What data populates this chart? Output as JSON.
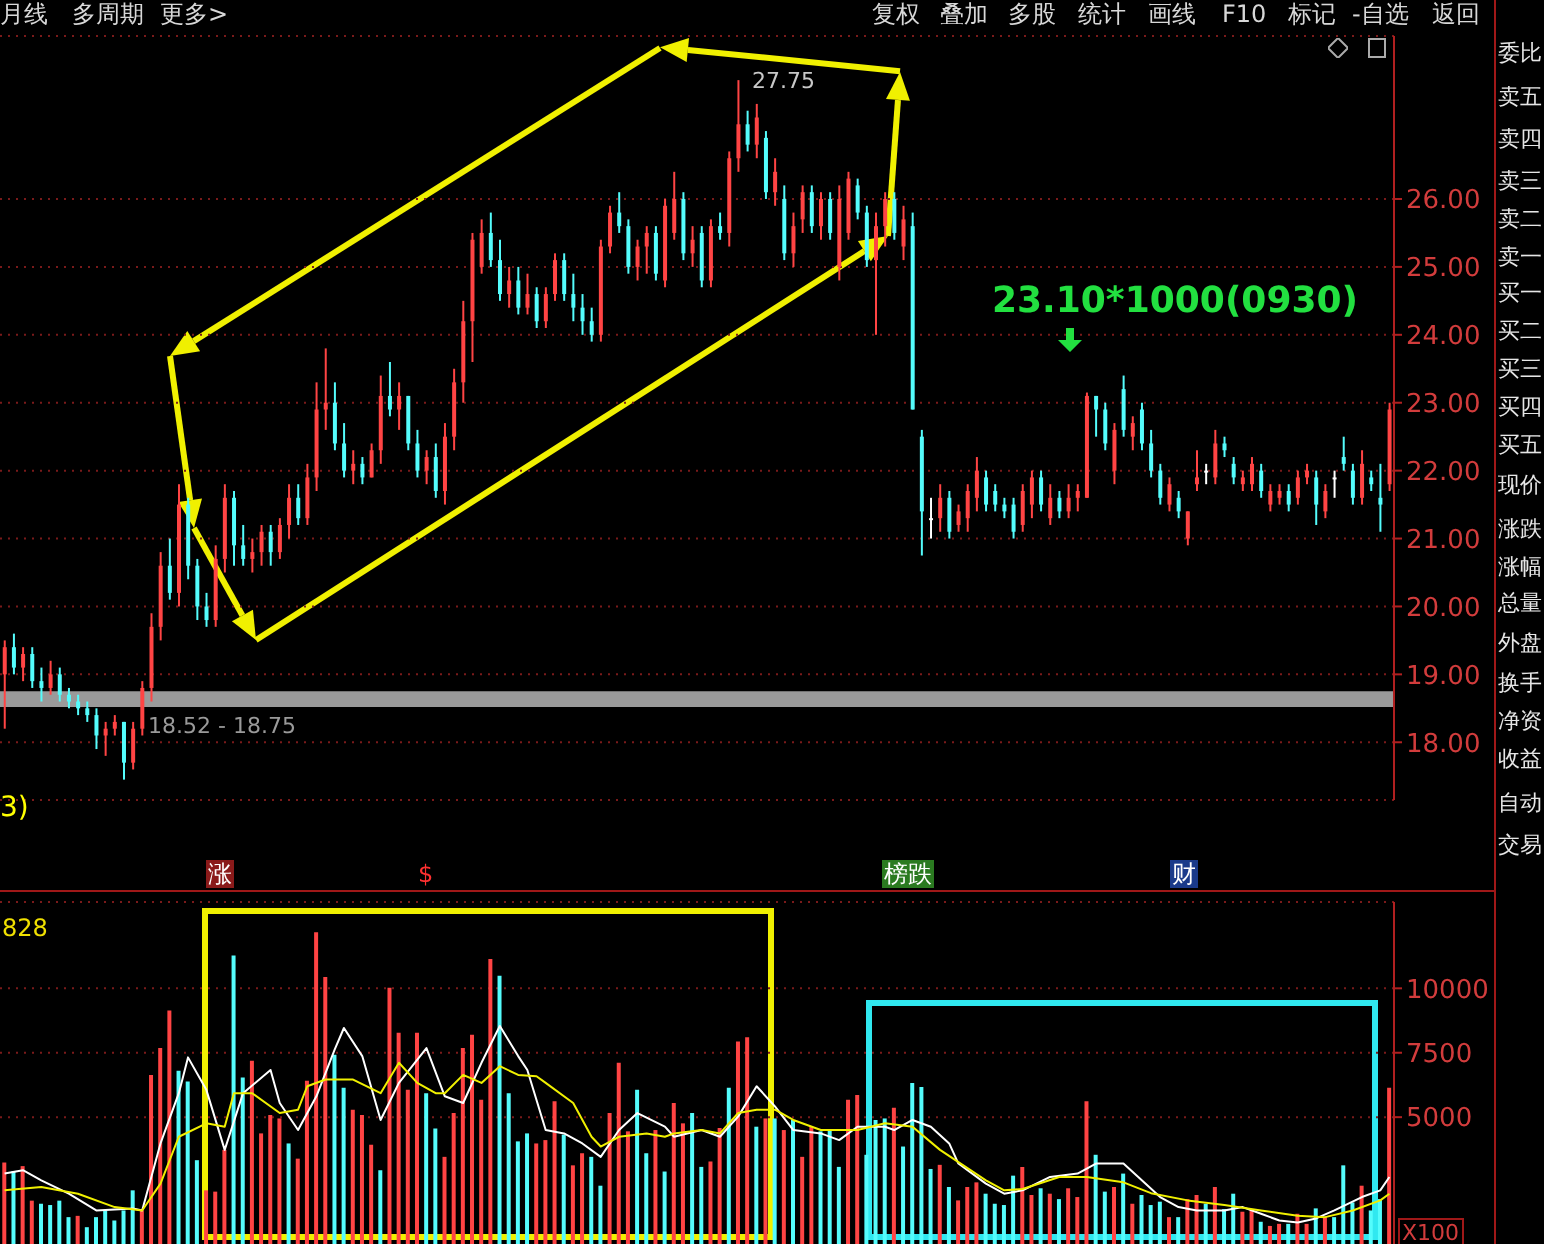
{
  "chart_data": [
    {
      "type": "candlestick",
      "categories": [
        null,
        null,
        null,
        null,
        null,
        null,
        null,
        null,
        null,
        null,
        null,
        null,
        null,
        null,
        null,
        null,
        null,
        null,
        null,
        null,
        null,
        null,
        null,
        null,
        null,
        null,
        null,
        null,
        null,
        null,
        null,
        null,
        null,
        null,
        null,
        null,
        null,
        null,
        null,
        null,
        null,
        null,
        null,
        null,
        null,
        null,
        null,
        null,
        null,
        null,
        null,
        null,
        null,
        null,
        null,
        null,
        null,
        null,
        null,
        null,
        null,
        null,
        null,
        null,
        null,
        null,
        null,
        null,
        null,
        null,
        null,
        null,
        null,
        null,
        null,
        null,
        null,
        null,
        null,
        null,
        null,
        null,
        null,
        null,
        null,
        null,
        null,
        null,
        null,
        null,
        null,
        null,
        null,
        null,
        null,
        null,
        null,
        null,
        null,
        null,
        null,
        null,
        null,
        null,
        null,
        null,
        null,
        null,
        null,
        null,
        null,
        null,
        null,
        null,
        null,
        null,
        null,
        null,
        null,
        null,
        null,
        null,
        null,
        null,
        null,
        null,
        null,
        null,
        null,
        null,
        null,
        null,
        null,
        null,
        null,
        null,
        null,
        null,
        null,
        null,
        null,
        null,
        null,
        null,
        null,
        null,
        null,
        null,
        null,
        null,
        null,
        null
      ],
      "ohlc": [
        [
          19.0,
          19.5,
          18.2,
          19.4
        ],
        [
          19.4,
          19.6,
          19.0,
          19.1
        ],
        [
          19.1,
          19.4,
          18.9,
          19.3
        ],
        [
          19.3,
          19.4,
          18.8,
          18.9
        ],
        [
          18.9,
          19.1,
          18.6,
          18.8
        ],
        [
          18.8,
          19.2,
          18.7,
          19.0
        ],
        [
          19.0,
          19.1,
          18.6,
          18.7
        ],
        [
          18.7,
          18.8,
          18.5,
          18.6
        ],
        [
          18.6,
          18.7,
          18.4,
          18.5
        ],
        [
          18.5,
          18.6,
          18.3,
          18.4
        ],
        [
          18.4,
          18.5,
          17.9,
          18.1
        ],
        [
          18.1,
          18.3,
          17.8,
          18.2
        ],
        [
          18.2,
          18.4,
          18.1,
          18.3
        ],
        [
          18.3,
          18.3,
          17.45,
          17.7
        ],
        [
          17.7,
          18.3,
          17.6,
          18.2
        ],
        [
          18.2,
          18.9,
          18.1,
          18.8
        ],
        [
          18.8,
          19.9,
          18.6,
          19.7
        ],
        [
          19.7,
          20.8,
          19.5,
          20.6
        ],
        [
          20.6,
          21.0,
          20.1,
          20.2
        ],
        [
          20.2,
          21.8,
          20.0,
          21.5
        ],
        [
          21.5,
          21.6,
          20.4,
          20.6
        ],
        [
          20.6,
          20.7,
          19.8,
          20.0
        ],
        [
          20.0,
          20.2,
          19.7,
          19.8
        ],
        [
          19.8,
          20.9,
          19.7,
          20.7
        ],
        [
          20.7,
          21.8,
          20.5,
          21.6
        ],
        [
          21.6,
          21.7,
          20.6,
          20.9
        ],
        [
          20.9,
          21.2,
          20.6,
          20.7
        ],
        [
          20.7,
          21.0,
          20.5,
          20.8
        ],
        [
          20.8,
          21.2,
          20.6,
          21.1
        ],
        [
          21.1,
          21.2,
          20.6,
          20.8
        ],
        [
          20.8,
          21.3,
          20.7,
          21.2
        ],
        [
          21.2,
          21.8,
          21.0,
          21.6
        ],
        [
          21.6,
          21.8,
          21.2,
          21.3
        ],
        [
          21.3,
          22.1,
          21.2,
          21.9
        ],
        [
          21.9,
          23.3,
          21.7,
          22.9
        ],
        [
          22.9,
          23.8,
          22.6,
          23.0
        ],
        [
          23.0,
          23.3,
          22.3,
          22.4
        ],
        [
          22.4,
          22.7,
          21.9,
          22.0
        ],
        [
          22.0,
          22.3,
          21.8,
          22.1
        ],
        [
          22.1,
          22.2,
          21.8,
          21.9
        ],
        [
          21.9,
          22.4,
          21.9,
          22.3
        ],
        [
          22.3,
          23.4,
          22.1,
          23.1
        ],
        [
          23.1,
          23.6,
          22.8,
          22.9
        ],
        [
          22.9,
          23.3,
          22.6,
          23.1
        ],
        [
          23.1,
          23.1,
          22.3,
          22.4
        ],
        [
          22.4,
          22.6,
          21.9,
          22.0
        ],
        [
          22.0,
          22.3,
          21.8,
          22.2
        ],
        [
          22.2,
          22.4,
          21.6,
          21.7
        ],
        [
          21.7,
          22.7,
          21.5,
          22.5
        ],
        [
          22.5,
          23.5,
          22.3,
          23.3
        ],
        [
          23.3,
          24.5,
          23.0,
          24.2
        ],
        [
          24.2,
          25.5,
          23.6,
          25.4
        ],
        [
          25.0,
          25.7,
          24.9,
          25.5
        ],
        [
          25.5,
          25.8,
          25.0,
          25.1
        ],
        [
          25.1,
          25.4,
          24.5,
          24.6
        ],
        [
          24.6,
          25.0,
          24.4,
          24.8
        ],
        [
          24.8,
          25.0,
          24.3,
          24.4
        ],
        [
          24.4,
          24.9,
          24.3,
          24.6
        ],
        [
          24.6,
          24.7,
          24.1,
          24.2
        ],
        [
          24.2,
          24.7,
          24.1,
          24.6
        ],
        [
          24.6,
          25.2,
          24.5,
          25.1
        ],
        [
          25.1,
          25.2,
          24.5,
          24.6
        ],
        [
          24.6,
          24.9,
          24.2,
          24.4
        ],
        [
          24.4,
          24.6,
          24.0,
          24.2
        ],
        [
          24.2,
          24.4,
          23.9,
          24.0
        ],
        [
          24.0,
          25.4,
          23.9,
          25.3
        ],
        [
          25.3,
          25.9,
          25.2,
          25.8
        ],
        [
          25.8,
          26.1,
          25.5,
          25.6
        ],
        [
          25.6,
          25.7,
          24.9,
          25.0
        ],
        [
          25.0,
          25.4,
          24.8,
          25.3
        ],
        [
          25.3,
          25.6,
          24.9,
          25.5
        ],
        [
          25.5,
          25.6,
          24.8,
          24.9
        ],
        [
          24.8,
          26.0,
          24.7,
          25.9
        ],
        [
          25.5,
          26.4,
          25.4,
          26.0
        ],
        [
          26.0,
          26.1,
          25.1,
          25.2
        ],
        [
          25.2,
          25.6,
          25.0,
          25.4
        ],
        [
          25.5,
          25.6,
          24.7,
          24.8
        ],
        [
          24.8,
          25.7,
          24.7,
          25.6
        ],
        [
          25.6,
          25.8,
          25.4,
          25.5
        ],
        [
          25.5,
          26.7,
          25.3,
          26.6
        ],
        [
          26.6,
          27.75,
          26.4,
          27.1
        ],
        [
          27.1,
          27.3,
          26.7,
          26.8
        ],
        [
          26.8,
          27.4,
          26.6,
          27.2
        ],
        [
          26.9,
          27.0,
          26.0,
          26.1
        ],
        [
          26.1,
          26.6,
          25.9,
          26.4
        ],
        [
          26.0,
          26.2,
          25.1,
          25.2
        ],
        [
          25.2,
          25.8,
          25.0,
          25.6
        ],
        [
          25.7,
          26.2,
          25.5,
          26.1
        ],
        [
          26.1,
          26.2,
          25.5,
          25.6
        ],
        [
          25.6,
          26.1,
          25.4,
          26.0
        ],
        [
          26.0,
          26.1,
          25.4,
          25.5
        ],
        [
          25.0,
          26.2,
          24.8,
          26.0
        ],
        [
          25.5,
          26.4,
          25.4,
          26.3
        ],
        [
          26.2,
          26.3,
          25.7,
          25.8
        ],
        [
          25.8,
          25.9,
          25.0,
          25.1
        ],
        [
          25.1,
          25.8,
          24.0,
          25.6
        ],
        [
          25.6,
          26.1,
          25.3,
          26.0
        ],
        [
          26.0,
          26.1,
          25.4,
          25.5
        ],
        [
          25.3,
          25.9,
          25.1,
          25.7
        ],
        [
          25.6,
          25.8,
          22.9,
          22.9
        ],
        [
          22.5,
          22.6,
          20.75,
          21.4
        ],
        [
          21.3,
          21.6,
          21.0,
          21.3
        ],
        [
          21.3,
          21.8,
          21.1,
          21.6
        ],
        [
          21.6,
          21.7,
          21.0,
          21.1
        ],
        [
          21.2,
          21.5,
          21.1,
          21.4
        ],
        [
          21.3,
          21.8,
          21.1,
          21.7
        ],
        [
          21.6,
          22.2,
          21.4,
          22.0
        ],
        [
          21.9,
          22.0,
          21.4,
          21.5
        ],
        [
          21.7,
          21.8,
          21.4,
          21.5
        ],
        [
          21.5,
          21.6,
          21.3,
          21.4
        ],
        [
          21.5,
          21.6,
          21.0,
          21.1
        ],
        [
          21.2,
          21.8,
          21.1,
          21.7
        ],
        [
          21.5,
          22.0,
          21.3,
          21.9
        ],
        [
          21.9,
          22.0,
          21.4,
          21.5
        ],
        [
          21.3,
          21.8,
          21.2,
          21.6
        ],
        [
          21.6,
          21.7,
          21.3,
          21.4
        ],
        [
          21.4,
          21.8,
          21.3,
          21.6
        ],
        [
          21.6,
          21.8,
          21.4,
          21.7
        ],
        [
          21.6,
          23.15,
          21.6,
          23.1
        ],
        [
          23.1,
          23.1,
          22.5,
          22.9
        ],
        [
          22.9,
          23.0,
          22.3,
          22.4
        ],
        [
          22.0,
          22.7,
          21.8,
          22.6
        ],
        [
          23.2,
          23.4,
          22.5,
          22.6
        ],
        [
          22.5,
          22.8,
          22.3,
          22.7
        ],
        [
          22.9,
          23.0,
          22.3,
          22.4
        ],
        [
          22.4,
          22.6,
          21.9,
          22.0
        ],
        [
          22.0,
          22.1,
          21.5,
          21.6
        ],
        [
          21.5,
          21.9,
          21.4,
          21.8
        ],
        [
          21.6,
          21.7,
          21.3,
          21.4
        ],
        [
          21.0,
          21.4,
          20.9,
          21.4
        ],
        [
          21.8,
          22.3,
          21.7,
          21.9
        ],
        [
          22.0,
          22.1,
          21.8,
          22.0
        ],
        [
          21.9,
          22.6,
          21.8,
          22.4
        ],
        [
          22.4,
          22.5,
          22.2,
          22.3
        ],
        [
          22.1,
          22.2,
          21.8,
          21.9
        ],
        [
          21.8,
          22.0,
          21.7,
          21.9
        ],
        [
          21.8,
          22.2,
          21.7,
          22.1
        ],
        [
          22.0,
          22.1,
          21.6,
          21.7
        ],
        [
          21.5,
          21.8,
          21.4,
          21.7
        ],
        [
          21.6,
          21.8,
          21.5,
          21.7
        ],
        [
          21.7,
          21.8,
          21.4,
          21.5
        ],
        [
          21.6,
          22.0,
          21.5,
          21.9
        ],
        [
          21.9,
          22.1,
          21.8,
          22.0
        ],
        [
          21.9,
          22.0,
          21.2,
          21.5
        ],
        [
          21.4,
          21.8,
          21.3,
          21.7
        ],
        [
          21.9,
          22.0,
          21.6,
          21.9
        ],
        [
          22.2,
          22.5,
          22.0,
          22.1
        ],
        [
          22.0,
          22.1,
          21.5,
          21.6
        ],
        [
          21.6,
          22.3,
          21.5,
          22.1
        ],
        [
          21.9,
          22.0,
          21.7,
          21.8
        ],
        [
          21.6,
          22.1,
          21.1,
          21.5
        ],
        [
          21.8,
          23.0,
          21.7,
          22.9
        ]
      ],
      "colors": [
        "#ff4444",
        "#54fcfc",
        "#ff4444",
        "#54fcfc",
        "#54fcfc",
        "#ff4444",
        "#54fcfc",
        "#54fcfc",
        "#54fcfc",
        "#54fcfc",
        "#54fcfc",
        "#ff4444",
        "#ff4444",
        "#54fcfc",
        "#ff4444",
        "#ff4444",
        "#ff4444",
        "#ff4444",
        "#54fcfc",
        "#ff4444",
        "#54fcfc",
        "#54fcfc",
        "#54fcfc",
        "#ff4444",
        "#ff4444",
        "#54fcfc",
        "#54fcfc",
        "#ff4444",
        "#ff4444",
        "#54fcfc",
        "#ff4444",
        "#ff4444",
        "#54fcfc",
        "#ff4444",
        "#ff4444",
        "#ff4444",
        "#54fcfc",
        "#54fcfc",
        "#ff4444",
        "#54fcfc",
        "#ff4444",
        "#ff4444",
        "#54fcfc",
        "#ff4444",
        "#54fcfc",
        "#54fcfc",
        "#ff4444",
        "#54fcfc",
        "#ff4444",
        "#ff4444",
        "#ff4444",
        "#ff4444",
        "#ff4444",
        "#54fcfc",
        "#54fcfc",
        "#ff4444",
        "#54fcfc",
        "#ff4444",
        "#54fcfc",
        "#ff4444",
        "#ff4444",
        "#54fcfc",
        "#54fcfc",
        "#54fcfc",
        "#54fcfc",
        "#ff4444",
        "#ff4444",
        "#54fcfc",
        "#54fcfc",
        "#ff4444",
        "#ff4444",
        "#54fcfc",
        "#ff4444",
        "#ff4444",
        "#54fcfc",
        "#ff4444",
        "#54fcfc",
        "#ff4444",
        "#54fcfc",
        "#ff4444",
        "#ff4444",
        "#54fcfc",
        "#ff4444",
        "#54fcfc",
        "#ff4444",
        "#54fcfc",
        "#ff4444",
        "#ff4444",
        "#54fcfc",
        "#ff4444",
        "#54fcfc",
        "#ff4444",
        "#ff4444",
        "#54fcfc",
        "#54fcfc",
        "#ff4444",
        "#ff4444",
        "#54fcfc",
        "#ff4444",
        "#54fcfc",
        "#54fcfc",
        "#ffffff",
        "#ff4444",
        "#54fcfc",
        "#ff4444",
        "#ff4444",
        "#ff4444",
        "#54fcfc",
        "#54fcfc",
        "#54fcfc",
        "#54fcfc",
        "#ff4444",
        "#ff4444",
        "#54fcfc",
        "#ff4444",
        "#54fcfc",
        "#ff4444",
        "#ff4444",
        "#ff4444",
        "#54fcfc",
        "#54fcfc",
        "#ff4444",
        "#54fcfc",
        "#ff4444",
        "#54fcfc",
        "#54fcfc",
        "#54fcfc",
        "#ff4444",
        "#54fcfc",
        "#ff4444",
        "#ff4444",
        "#ffffff",
        "#ff4444",
        "#54fcfc",
        "#54fcfc",
        "#ff4444",
        "#ff4444",
        "#54fcfc",
        "#ff4444",
        "#ff4444",
        "#54fcfc",
        "#ff4444",
        "#ff4444",
        "#54fcfc",
        "#ff4444",
        "#ffffff",
        "#54fcfc",
        "#54fcfc",
        "#ff4444",
        "#54fcfc",
        "#54fcfc",
        "#ff4444"
      ],
      "ylim": [
        17.15,
        28.4
      ],
      "yticks": [
        {
          "value": 18,
          "label": "18.00"
        },
        {
          "value": 19,
          "label": "19.00"
        },
        {
          "value": 20,
          "label": "20.00"
        },
        {
          "value": 21,
          "label": "21.00"
        },
        {
          "value": 22,
          "label": "22.00"
        },
        {
          "value": 23,
          "label": "23.00"
        },
        {
          "value": 24,
          "label": "24.00"
        },
        {
          "value": 25,
          "label": "25.00"
        },
        {
          "value": 26,
          "label": "26.00"
        }
      ],
      "grid": "y",
      "bands": [
        {
          "axis": "y",
          "from": 18.52,
          "to": 18.75,
          "label": "18.52 - 18.75",
          "color": "#9a9a9a"
        }
      ],
      "annotations": [
        "27.75",
        "23.10*1000(0930)",
        "3)",
        "月线",
        "多周期",
        "更多>",
        "复权",
        "叠加",
        "多股",
        "统计",
        "画线",
        "F10",
        "标记",
        "-自选",
        "返回",
        "委比",
        "卖五",
        "卖四",
        "卖三",
        "卖二",
        "卖一",
        "买一",
        "买二",
        "买三",
        "买四",
        "买五",
        "现价",
        "涨跌",
        "涨幅",
        "总量",
        "外盘",
        "换手",
        "净资",
        "收益",
        "自动",
        "交易"
      ]
    },
    {
      "type": "bar",
      "categories": [
        null,
        null,
        null,
        null,
        null,
        null,
        null,
        null,
        null,
        null,
        null,
        null,
        null,
        null,
        null,
        null,
        null,
        null,
        null,
        null,
        null,
        null,
        null,
        null,
        null,
        null,
        null,
        null,
        null,
        null,
        null,
        null,
        null,
        null,
        null,
        null,
        null,
        null,
        null,
        null,
        null,
        null,
        null,
        null,
        null,
        null,
        null,
        null,
        null,
        null,
        null,
        null,
        null,
        null,
        null,
        null,
        null,
        null,
        null,
        null,
        null,
        null,
        null,
        null,
        null,
        null,
        null,
        null,
        null,
        null,
        null,
        null,
        null,
        null,
        null,
        null,
        null,
        null,
        null,
        null,
        null,
        null,
        null,
        null,
        null,
        null,
        null,
        null,
        null,
        null,
        null,
        null,
        null,
        null,
        null,
        null,
        null,
        null,
        null,
        null,
        null,
        null,
        null,
        null,
        null,
        null,
        null,
        null,
        null,
        null,
        null,
        null,
        null,
        null,
        null,
        null,
        null,
        null,
        null,
        null,
        null,
        null,
        null,
        null,
        null,
        null,
        null,
        null,
        null,
        null,
        null,
        null,
        null,
        null,
        null,
        null,
        null,
        null,
        null,
        null,
        null,
        null,
        null,
        null,
        null,
        null,
        null,
        null,
        null,
        null,
        null,
        null
      ],
      "series": [
        {
          "type": "bar",
          "values": [
            3240,
            2900,
            3100,
            1760,
            1640,
            1590,
            1760,
            1120,
            1170,
            730,
            1120,
            1380,
            990,
            1380,
            2160,
            1380,
            6640,
            7680,
            9140,
            6800,
            6380,
            3330,
            2160,
            2110,
            3730,
            11270,
            6540,
            7190,
            4370,
            5080,
            4950,
            3980,
            3390,
            6410,
            12180,
            10440,
            7420,
            6140,
            5290,
            5080,
            3930,
            2940,
            10020,
            8280,
            6060,
            8280,
            5930,
            4560,
            3460,
            5160,
            7680,
            8200,
            5680,
            11140,
            10490,
            5930,
            4060,
            4370,
            3980,
            4110,
            5620,
            4320,
            3130,
            3600,
            3460,
            2340,
            5160,
            7110,
            4450,
            6060,
            3600,
            4500,
            2890,
            5550,
            4760,
            5160,
            3070,
            3280,
            4580,
            6140,
            7940,
            8100,
            4630,
            4950,
            4950,
            4500,
            4890,
            3460,
            4630,
            4450,
            4500,
            3070,
            5680,
            5860,
            3540,
            4890,
            4950,
            5370,
            3860,
            6330,
            6170,
            2990,
            3150,
            2290,
            1770,
            2290,
            2470,
            2030,
            1640,
            1590,
            2730,
            3070,
            1980,
            2240,
            2030,
            1820,
            2240,
            1900,
            5620,
            3540,
            2110,
            2290,
            2810,
            1640,
            1980,
            1590,
            1720,
            1120,
            1120,
            1820,
            1980,
            1640,
            2290,
            1430,
            2030,
            1330,
            1430,
            940,
            780,
            860,
            860,
            1250,
            860,
            1460,
            1120,
            1120,
            3130,
            1690,
            2340,
            1380,
            1820,
            6140
          ],
          "colors": [
            "#ff4444",
            "#54fcfc",
            "#ff4444",
            "#ff4444",
            "#54fcfc",
            "#54fcfc",
            "#54fcfc",
            "#54fcfc",
            "#ff4444",
            "#54fcfc",
            "#54fcfc",
            "#54fcfc",
            "#54fcfc",
            "#54fcfc",
            "#54fcfc",
            "#ff4444",
            "#ff4444",
            "#ff4444",
            "#ff4444",
            "#54fcfc",
            "#54fcfc",
            "#54fcfc",
            "#ff4444",
            "#ff4444",
            "#ff4444",
            "#54fcfc",
            "#54fcfc",
            "#ff4444",
            "#ff4444",
            "#ff4444",
            "#ff4444",
            "#54fcfc",
            "#ff4444",
            "#ff4444",
            "#ff4444",
            "#ff4444",
            "#54fcfc",
            "#54fcfc",
            "#ff4444",
            "#ff4444",
            "#ff4444",
            "#54fcfc",
            "#ff4444",
            "#ff4444",
            "#ff4444",
            "#ff4444",
            "#54fcfc",
            "#54fcfc",
            "#ff4444",
            "#ff4444",
            "#ff4444",
            "#ff4444",
            "#ff4444",
            "#ff4444",
            "#54fcfc",
            "#54fcfc",
            "#54fcfc",
            "#54fcfc",
            "#ff4444",
            "#ff4444",
            "#ff4444",
            "#54fcfc",
            "#ff4444",
            "#ff4444",
            "#54fcfc",
            "#54fcfc",
            "#ff4444",
            "#ff4444",
            "#ff4444",
            "#54fcfc",
            "#54fcfc",
            "#ff4444",
            "#54fcfc",
            "#ff4444",
            "#ff4444",
            "#54fcfc",
            "#54fcfc",
            "#ff4444",
            "#ff4444",
            "#54fcfc",
            "#ff4444",
            "#ff4444",
            "#54fcfc",
            "#ff4444",
            "#54fcfc",
            "#ff4444",
            "#54fcfc",
            "#ff4444",
            "#ff4444",
            "#54fcfc",
            "#54fcfc",
            "#54fcfc",
            "#ff4444",
            "#ff4444",
            "#54fcfc",
            "#54fcfc",
            "#54fcfc",
            "#ff4444",
            "#54fcfc",
            "#54fcfc",
            "#54fcfc",
            "#54fcfc",
            "#ff4444",
            "#54fcfc",
            "#ff4444",
            "#ff4444",
            "#ff4444",
            "#54fcfc",
            "#54fcfc",
            "#54fcfc",
            "#54fcfc",
            "#ff4444",
            "#ff4444",
            "#54fcfc",
            "#ff4444",
            "#54fcfc",
            "#ff4444",
            "#ff4444",
            "#ff4444",
            "#54fcfc",
            "#54fcfc",
            "#ff4444",
            "#54fcfc",
            "#ff4444",
            "#54fcfc",
            "#54fcfc",
            "#54fcfc",
            "#ff4444",
            "#54fcfc",
            "#ff4444",
            "#ff4444",
            "#54fcfc",
            "#ff4444",
            "#54fcfc",
            "#54fcfc",
            "#ff4444",
            "#ff4444",
            "#54fcfc",
            "#ff4444",
            "#ff4444",
            "#54fcfc",
            "#ff4444",
            "#ff4444",
            "#54fcfc",
            "#ff4444",
            "#54fcfc",
            "#54fcfc",
            "#54fcfc",
            "#ff4444",
            "#54fcfc",
            "#54fcfc",
            "#ff4444"
          ]
        },
        {
          "type": "line",
          "color": "#ffffff",
          "values": [
            2810,
            null,
            2940,
            null,
            2550,
            null,
            null,
            2030,
            null,
            null,
            1380,
            null,
            null,
            null,
            1460,
            1380,
            null,
            3980,
            null,
            5930,
            7320,
            null,
            6060,
            null,
            3730,
            null,
            5930,
            null,
            null,
            6830,
            5550,
            null,
            4500,
            null,
            5810,
            null,
            7630,
            8460,
            null,
            7370,
            null,
            4890,
            null,
            6330,
            null,
            null,
            7680,
            null,
            5810,
            null,
            5550,
            null,
            7110,
            null,
            8540,
            null,
            7370,
            6830,
            null,
            4500,
            null,
            4370,
            null,
            3980,
            null,
            3460,
            null,
            4500,
            null,
            5160,
            null,
            null,
            4630,
            4240,
            null,
            null,
            4500,
            null,
            4240,
            null,
            5030,
            null,
            6200,
            null,
            5420,
            null,
            4500,
            null,
            null,
            4370,
            null,
            4110,
            null,
            4630,
            null,
            null,
            4630,
            4500,
            null,
            4890,
            null,
            4630,
            null,
            3980,
            3200,
            null,
            null,
            2420,
            null,
            2030,
            null,
            2160,
            null,
            null,
            2680,
            null,
            null,
            2810,
            null,
            3200,
            null,
            null,
            3200,
            null,
            2550,
            null,
            1900,
            null,
            1510,
            null,
            1380,
            null,
            null,
            1380,
            null,
            1510,
            null,
            1250,
            null,
            990,
            null,
            910,
            null,
            1070,
            null,
            1380,
            null,
            null,
            1900,
            null,
            2160,
            2680
          ]
        },
        {
          "type": "line",
          "color": "#f0f000",
          "values": [
            2160,
            null,
            null,
            null,
            2290,
            null,
            null,
            null,
            2030,
            null,
            null,
            null,
            1510,
            null,
            null,
            1380,
            null,
            2420,
            null,
            4240,
            null,
            null,
            4760,
            null,
            4630,
            5930,
            null,
            5930,
            null,
            null,
            5160,
            null,
            5290,
            6200,
            null,
            6460,
            null,
            null,
            6460,
            null,
            null,
            5930,
            null,
            7110,
            null,
            6330,
            null,
            5930,
            5930,
            null,
            6640,
            null,
            6330,
            null,
            6980,
            null,
            6640,
            null,
            6590,
            6330,
            null,
            null,
            5550,
            null,
            4240,
            3860,
            null,
            4240,
            null,
            null,
            4370,
            null,
            4240,
            4370,
            null,
            null,
            4500,
            null,
            4370,
            null,
            5160,
            null,
            5290,
            null,
            5290,
            null,
            4890,
            null,
            null,
            4500,
            null,
            null,
            null,
            4500,
            null,
            null,
            4760,
            null,
            null,
            4630,
            null,
            null,
            3730,
            null,
            null,
            null,
            null,
            2550,
            null,
            2160,
            null,
            2210,
            null,
            null,
            null,
            2680,
            null,
            null,
            2680,
            null,
            null,
            null,
            2470,
            null,
            null,
            2050,
            null,
            null,
            null,
            1770,
            null,
            null,
            null,
            1590,
            null,
            null,
            null,
            1380,
            null,
            null,
            null,
            1170,
            null,
            null,
            1120,
            null,
            null,
            1380,
            null,
            null,
            1770,
            2030
          ]
        }
      ],
      "ylim": [
        0,
        13350
      ],
      "yticks": [
        5000,
        7500,
        10000
      ],
      "grid": "y",
      "annotations": [
        "828",
        "涨",
        "$",
        "榜跌",
        "财",
        "X100"
      ]
    }
  ]
}
